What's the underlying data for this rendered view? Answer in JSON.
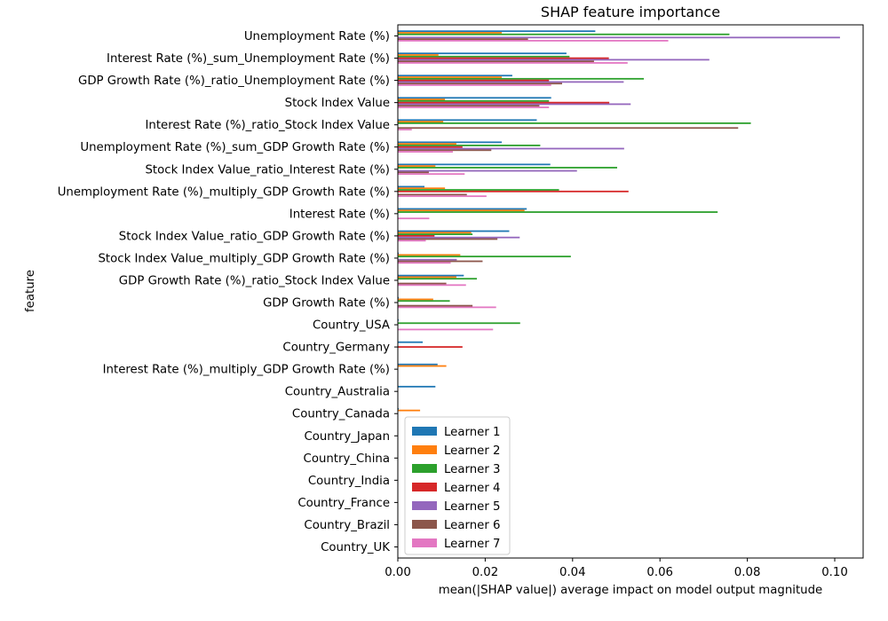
{
  "chart_data": {
    "type": "bar",
    "orientation": "horizontal",
    "title": "SHAP feature importance",
    "xlabel": "mean(|SHAP value|) average impact on model output magnitude",
    "ylabel": "feature",
    "xlim": [
      0,
      0.1065
    ],
    "xticks": [
      "0.00",
      "0.02",
      "0.04",
      "0.06",
      "0.08",
      "0.10"
    ],
    "legend_position": "lower-left",
    "categories": [
      "Unemployment Rate (%)",
      "Interest Rate (%)_sum_Unemployment Rate (%)",
      "GDP Growth Rate (%)_ratio_Unemployment Rate (%)",
      "Stock Index Value",
      "Interest Rate (%)_ratio_Stock Index Value",
      "Unemployment Rate (%)_sum_GDP Growth Rate (%)",
      "Stock Index Value_ratio_Interest Rate (%)",
      "Unemployment Rate (%)_multiply_GDP Growth Rate (%)",
      "Interest Rate (%)",
      "Stock Index Value_ratio_GDP Growth Rate (%)",
      "Stock Index Value_multiply_GDP Growth Rate (%)",
      "GDP Growth Rate (%)_ratio_Stock Index Value",
      "GDP Growth Rate (%)",
      "Country_USA",
      "Country_Germany",
      "Interest Rate (%)_multiply_GDP Growth Rate (%)",
      "Country_Australia",
      "Country_Canada",
      "Country_Japan",
      "Country_China",
      "Country_India",
      "Country_France",
      "Country_Brazil",
      "Country_UK"
    ],
    "series": [
      {
        "name": "Learner 1",
        "color": "#1f77b4",
        "values": [
          0.0452,
          0.0386,
          0.0262,
          0.0351,
          0.0318,
          0.0238,
          0.0349,
          0.0061,
          0.0295,
          0.0255,
          0.0002,
          0.0151,
          0.0002,
          0.0002,
          0.0057,
          0.0091,
          0.0086,
          0.0002,
          0.0001,
          0.0001,
          0.0,
          0.0,
          0.0,
          0.0
        ]
      },
      {
        "name": "Learner 2",
        "color": "#ff7f0e",
        "values": [
          0.0238,
          0.0093,
          0.0238,
          0.0108,
          0.0104,
          0.0134,
          0.0086,
          0.0108,
          0.029,
          0.0168,
          0.0143,
          0.0134,
          0.0081,
          0.0,
          0.0,
          0.0111,
          0.0,
          0.0051,
          0.0,
          0.0,
          0.0,
          0.0,
          0.0,
          0.0
        ]
      },
      {
        "name": "Learner 3",
        "color": "#2ca02c",
        "values": [
          0.0759,
          0.0393,
          0.0563,
          0.0346,
          0.0808,
          0.0326,
          0.0502,
          0.0369,
          0.0732,
          0.0171,
          0.0396,
          0.0181,
          0.0119,
          0.028,
          0.0,
          0.0,
          0.0,
          0.0,
          0.0,
          0.0,
          0.0,
          0.0,
          0.0,
          0.0
        ]
      },
      {
        "name": "Learner 4",
        "color": "#d62728",
        "values": [
          0.0,
          0.0483,
          0.0346,
          0.0484,
          0.0,
          0.0148,
          0.0,
          0.0528,
          0.0,
          0.0084,
          0.0,
          0.0,
          0.0,
          0.0,
          0.0148,
          0.0,
          0.0,
          0.0,
          0.0,
          0.0,
          0.0,
          0.0,
          0.0,
          0.0
        ]
      },
      {
        "name": "Learner 5",
        "color": "#9467bd",
        "values": [
          0.1012,
          0.0713,
          0.0517,
          0.0533,
          0.0,
          0.0518,
          0.041,
          0.0,
          0.0,
          0.0279,
          0.0135,
          0.0,
          0.0,
          0.0,
          0.0,
          0.0,
          0.0,
          0.0,
          0.0,
          0.0,
          0.0,
          0.0,
          0.0,
          0.0
        ]
      },
      {
        "name": "Learner 6",
        "color": "#8c564b",
        "values": [
          0.0298,
          0.0449,
          0.0376,
          0.0324,
          0.0779,
          0.0214,
          0.0071,
          0.0158,
          0.0,
          0.0228,
          0.0194,
          0.0111,
          0.0171,
          0.0,
          0.0,
          0.0,
          0.0,
          0.0,
          0.0,
          0.0,
          0.0,
          0.0,
          0.0,
          0.0
        ]
      },
      {
        "name": "Learner 7",
        "color": "#e377c2",
        "values": [
          0.0619,
          0.0526,
          0.0351,
          0.0346,
          0.0032,
          0.0126,
          0.0153,
          0.0203,
          0.0072,
          0.0064,
          0.0121,
          0.0156,
          0.0225,
          0.0218,
          0.0,
          0.0,
          0.0,
          0.0,
          0.0,
          0.0,
          0.0,
          0.0,
          0.0,
          0.0
        ]
      }
    ]
  }
}
